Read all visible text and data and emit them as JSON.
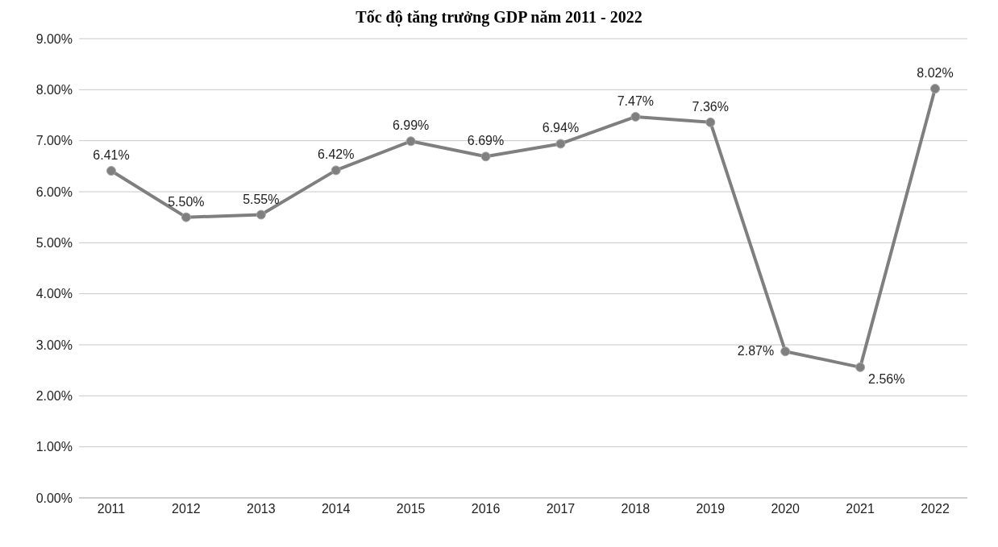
{
  "chart_data": {
    "type": "line",
    "title": "Tốc độ tăng trưởng GDP năm 2011 - 2022",
    "categories": [
      "2011",
      "2012",
      "2013",
      "2014",
      "2015",
      "2016",
      "2017",
      "2018",
      "2019",
      "2020",
      "2021",
      "2022"
    ],
    "values": [
      6.41,
      5.5,
      5.55,
      6.42,
      6.99,
      6.69,
      6.94,
      7.47,
      7.36,
      2.87,
      2.56,
      8.02
    ],
    "value_labels": [
      "6.41%",
      "5.50%",
      "5.55%",
      "6.42%",
      "6.99%",
      "6.69%",
      "6.94%",
      "7.47%",
      "7.36%",
      "2.87%",
      "2.56%",
      "8.02%"
    ],
    "color": "#7f7f7f",
    "marker": "circle",
    "line_style": "solid",
    "grid": "y",
    "ylim": [
      0,
      9
    ],
    "yticks": [
      {
        "value": 0,
        "label": "0.00%"
      },
      {
        "value": 1,
        "label": "1.00%"
      },
      {
        "value": 2,
        "label": "2.00%"
      },
      {
        "value": 3,
        "label": "3.00%"
      },
      {
        "value": 4,
        "label": "4.00%"
      },
      {
        "value": 5,
        "label": "5.00%"
      },
      {
        "value": 6,
        "label": "6.00%"
      },
      {
        "value": 7,
        "label": "7.00%"
      },
      {
        "value": 8,
        "label": "8.00%"
      },
      {
        "value": 9,
        "label": "9.00%"
      }
    ]
  }
}
